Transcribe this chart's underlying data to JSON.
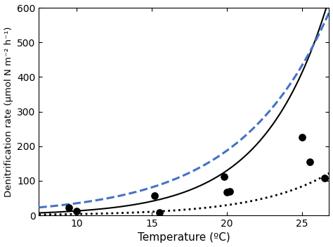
{
  "xlabel": "Temperature (ºC)",
  "ylabel": "Denitrification rate (μmol N m⁻² h⁻¹)",
  "xlim": [
    7.5,
    26.8
  ],
  "ylim": [
    0,
    600
  ],
  "xticks": [
    10,
    15,
    20,
    25
  ],
  "yticks": [
    0,
    100,
    200,
    300,
    400,
    500,
    600
  ],
  "scatter_x": [
    9.5,
    10.0,
    15.2,
    15.5,
    19.8,
    20.0,
    20.2,
    25.0,
    25.5,
    26.5
  ],
  "scatter_y": [
    22,
    12,
    58,
    8,
    112,
    68,
    70,
    225,
    155,
    108
  ],
  "solid_params": {
    "a": 1.25,
    "b": 0.232
  },
  "dotted_params": {
    "a": 0.45,
    "b": 0.209
  },
  "dashed_params": {
    "a": 6.5,
    "b": 0.168
  },
  "solid_color": "#000000",
  "dotted_color": "#000000",
  "dashed_color": "#4472c4",
  "background_color": "#ffffff",
  "figsize": [
    4.74,
    3.51
  ],
  "dpi": 100
}
